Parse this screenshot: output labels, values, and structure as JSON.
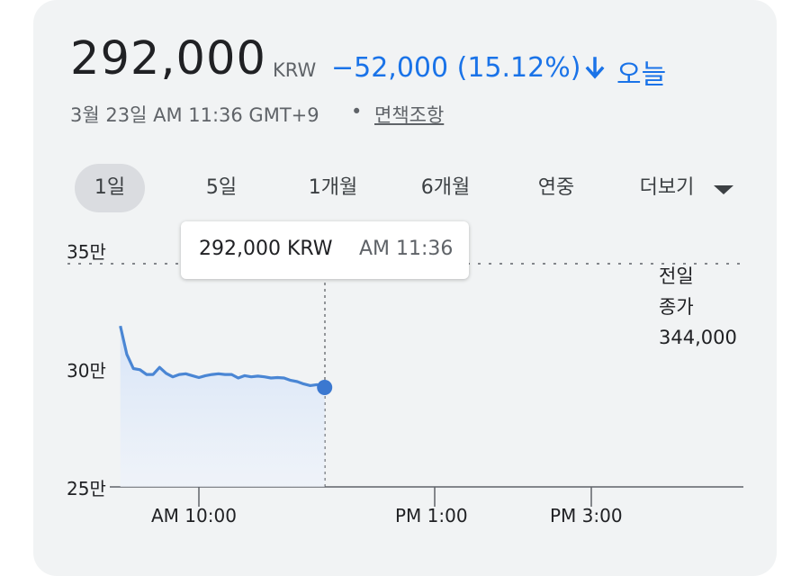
{
  "quote": {
    "price": "292,000",
    "currency": "KRW",
    "change": "−52,000 (15.12%)",
    "period": "오늘",
    "timestamp": "3월 23일 AM 11:36 GMT+9",
    "separator": "•",
    "disclaimer": "면책조항"
  },
  "colors": {
    "accent": "#1a73e8",
    "line": "#4a86d4",
    "card_bg": "#f1f3f4"
  },
  "tabs": [
    {
      "label": "1일",
      "active": true
    },
    {
      "label": "5일",
      "active": false
    },
    {
      "label": "1개월",
      "active": false
    },
    {
      "label": "6개월",
      "active": false
    },
    {
      "label": "연중",
      "active": false
    },
    {
      "label": "더보기",
      "active": false
    }
  ],
  "tooltip": {
    "price": "292,000 KRW",
    "time": "AM 11:36"
  },
  "previous_close": {
    "line1": "전일",
    "line2": "종가",
    "value": "344,000"
  },
  "chart_data": {
    "type": "line",
    "y_ticks": [
      "35만",
      "30만",
      "25만"
    ],
    "x_ticks": [
      "AM 10:00",
      "PM 1:00",
      "PM 3:00"
    ],
    "ylim": [
      250000,
      350000
    ],
    "previous_close_value": 344000,
    "series": [
      {
        "x": [
          "09:00",
          "09:05",
          "09:10",
          "09:15",
          "09:20",
          "09:25",
          "09:30",
          "09:35",
          "09:40",
          "09:45",
          "09:50",
          "09:55",
          "10:00",
          "10:05",
          "10:10",
          "10:15",
          "10:20",
          "10:25",
          "10:30",
          "10:35",
          "10:40",
          "10:45",
          "10:50",
          "10:55",
          "11:00",
          "11:05",
          "11:10",
          "11:15",
          "11:20",
          "11:25",
          "11:30",
          "11:36"
        ],
        "values": [
          318000,
          306000,
          300000,
          299500,
          297500,
          297500,
          300500,
          298000,
          296500,
          297500,
          297800,
          297000,
          296200,
          297000,
          297500,
          297800,
          297500,
          297500,
          296000,
          297000,
          296500,
          296800,
          296500,
          296000,
          296200,
          296000,
          295000,
          294500,
          293500,
          292800,
          293200,
          292000
        ]
      }
    ]
  }
}
